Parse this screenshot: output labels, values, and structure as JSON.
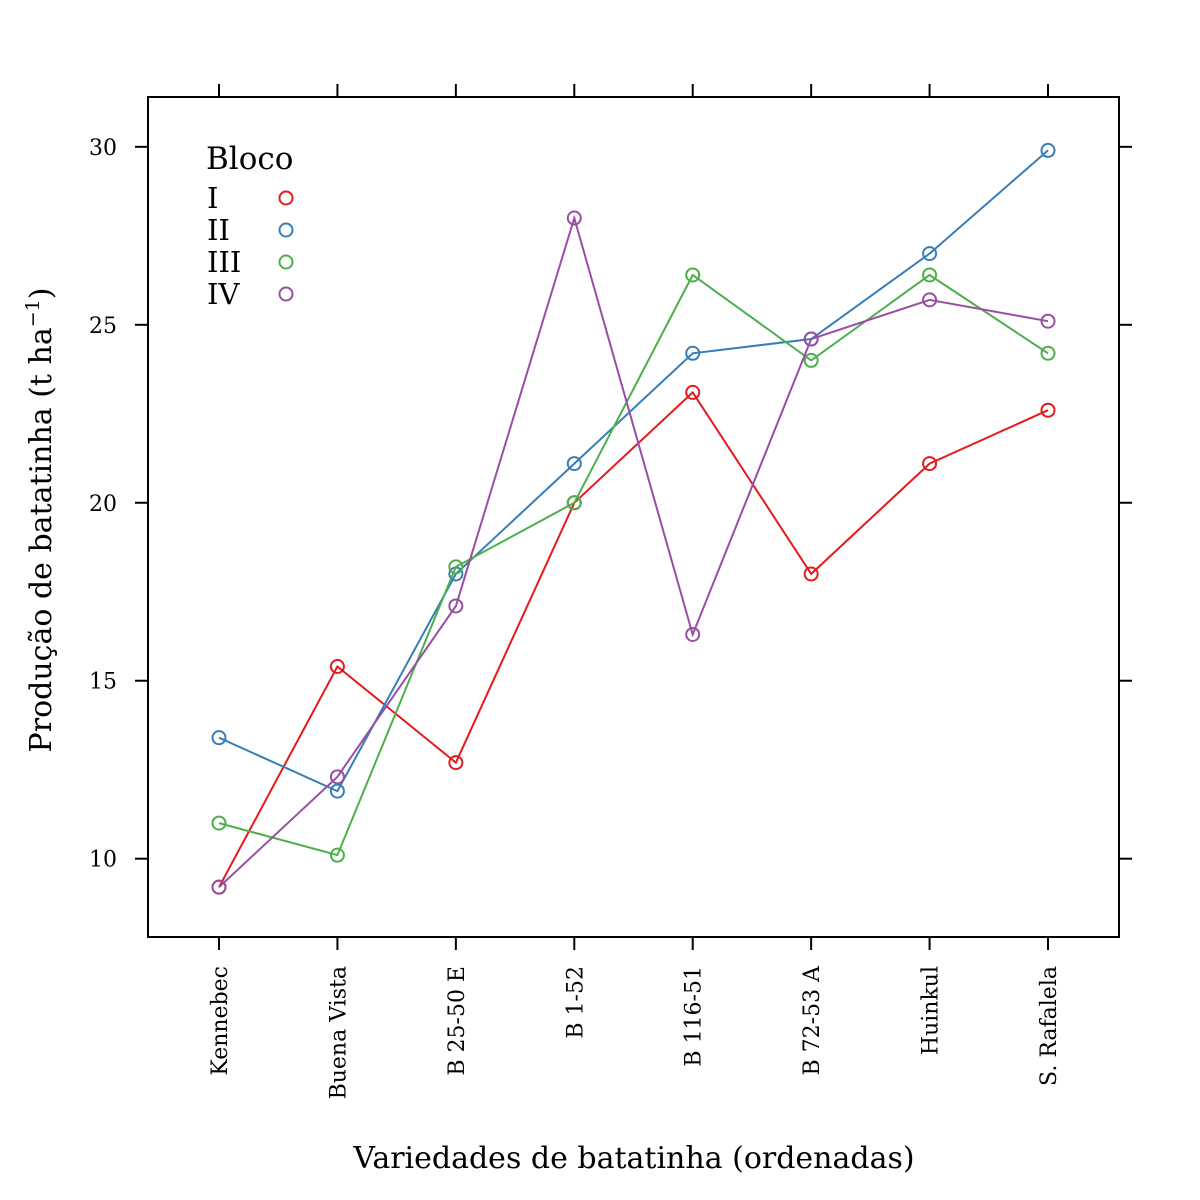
{
  "chart_data": {
    "type": "line",
    "xlabel": "Variedades de batatinha (ordenadas)",
    "ylabel": "Produção de batatinha (t ha",
    "ylabel_superscript": "−1",
    "ylabel_close": ")",
    "categories": [
      "Kennebec",
      "Buena Vista",
      "B 25-50 E",
      "B 1-52",
      "B 116-51",
      "B 72-53 A",
      "Huinkul",
      "S. Rafalela"
    ],
    "y_ticks": [
      10,
      15,
      20,
      25,
      30
    ],
    "ylim": [
      7.8,
      31.4
    ],
    "grid": false,
    "legend": {
      "title": "Bloco",
      "position": "top-left"
    },
    "series": [
      {
        "name": "I",
        "color": "#e41a1c",
        "values": [
          9.2,
          15.4,
          12.7,
          20.0,
          23.1,
          18.0,
          21.1,
          22.6
        ]
      },
      {
        "name": "II",
        "color": "#377eb8",
        "values": [
          13.4,
          11.9,
          18.0,
          21.1,
          24.2,
          24.6,
          27.0,
          29.9
        ]
      },
      {
        "name": "III",
        "color": "#4daf4a",
        "values": [
          11.0,
          10.1,
          18.2,
          20.0,
          26.4,
          24.0,
          26.4,
          24.2
        ]
      },
      {
        "name": "IV",
        "color": "#984ea3",
        "values": [
          9.2,
          12.3,
          17.1,
          28.0,
          16.3,
          24.6,
          25.7,
          25.1
        ]
      }
    ]
  }
}
